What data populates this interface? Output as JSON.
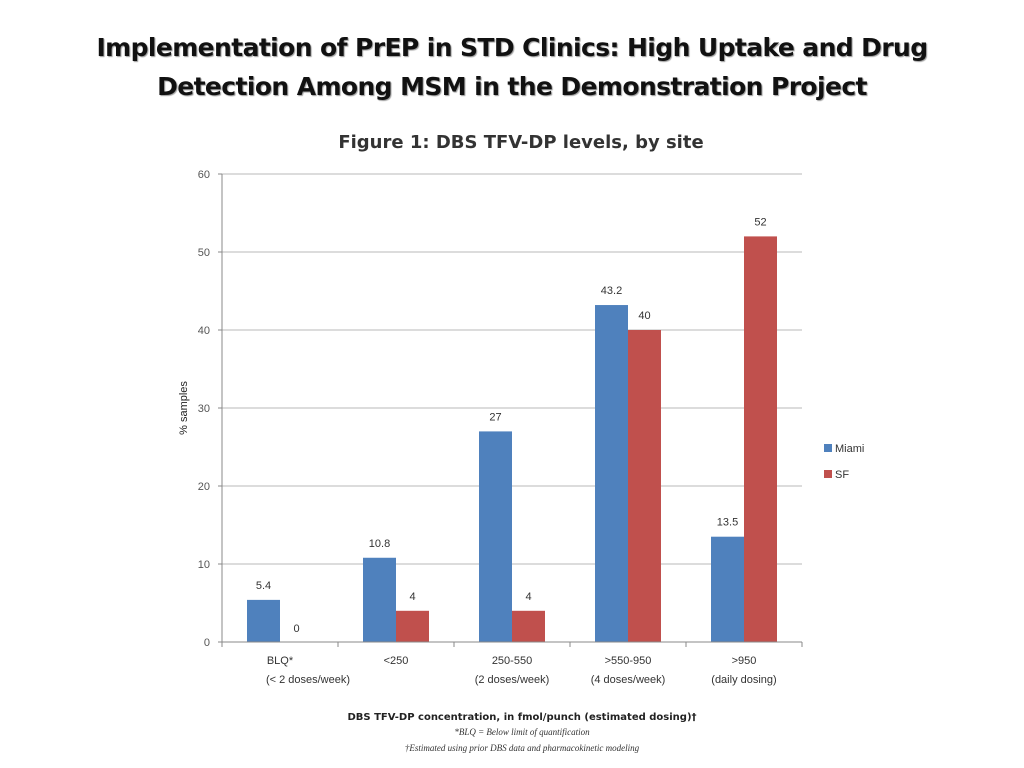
{
  "slide": {
    "title_line1": "Implementation of PrEP in STD Clinics: High Uptake and Drug",
    "title_line2": "Detection Among MSM in the Demonstration Project"
  },
  "chart_data": {
    "type": "bar",
    "title": "Figure 1:  DBS TFV-DP levels, by site",
    "xlabel": "DBS TFV-DP concentration, in fmol/punch (estimated dosing)†",
    "ylabel": "% samples",
    "ylim": [
      0,
      60
    ],
    "yticks": [
      0,
      10,
      20,
      30,
      40,
      50,
      60
    ],
    "grid": true,
    "legend_position": "right",
    "categories": [
      "BLQ*",
      "<250",
      "250-550",
      ">550-950",
      ">950"
    ],
    "category_sublabels": [
      "(< 2 doses/week)",
      "",
      "(2 doses/week)",
      "(4 doses/week)",
      "(daily dosing)"
    ],
    "sublabel_note": "The (< 2 doses/week) label spans the BLQ* and <250 categories",
    "series": [
      {
        "name": "Miami",
        "color": "#4f81bd",
        "values": [
          5.4,
          10.8,
          27,
          43.2,
          13.5
        ],
        "labels": [
          "5.4",
          "10.8",
          "27",
          "43.2",
          "13.5"
        ]
      },
      {
        "name": "SF",
        "color": "#c0504d",
        "values": [
          0,
          4,
          4,
          40,
          52
        ],
        "labels": [
          "0",
          "4",
          "4",
          "40",
          "52"
        ]
      }
    ],
    "footnotes": [
      "*BLQ = Below limit of quantification",
      "†Estimated using prior DBS data and pharmacokinetic modeling"
    ]
  }
}
